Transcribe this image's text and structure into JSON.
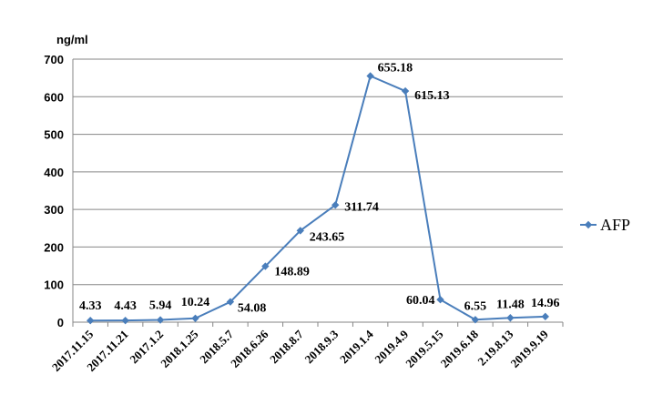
{
  "chart_data": {
    "type": "line",
    "ylabel": "ng/ml",
    "ylim": [
      0,
      700
    ],
    "yticks": [
      0,
      100,
      200,
      300,
      400,
      500,
      600,
      700
    ],
    "grid": true,
    "legend": "right",
    "categories": [
      "2017.11.15",
      "2017.11.21",
      "2017.1.2",
      "2018.1.25",
      "2018.5.7",
      "2018.6.26",
      "2018.8.7",
      "2018.9.3",
      "2019.1.4",
      "2019.4.9",
      "2019.5.15",
      "2019.6.18",
      "2.19.8.13",
      "2019.9.19"
    ],
    "series": [
      {
        "name": "AFP",
        "color": "#4a7ebb",
        "values": [
          4.33,
          4.43,
          5.94,
          10.24,
          54.08,
          148.89,
          243.65,
          311.74,
          655.18,
          615.13,
          60.04,
          6.55,
          11.48,
          14.96
        ],
        "labels": [
          "4.33",
          "4.43",
          "5.94",
          "10.24",
          "54.08",
          "148.89",
          "243.65",
          "311.74",
          "655.18",
          "615.13",
          "60.04",
          "6.55",
          "11.48",
          "14.96"
        ]
      }
    ]
  }
}
